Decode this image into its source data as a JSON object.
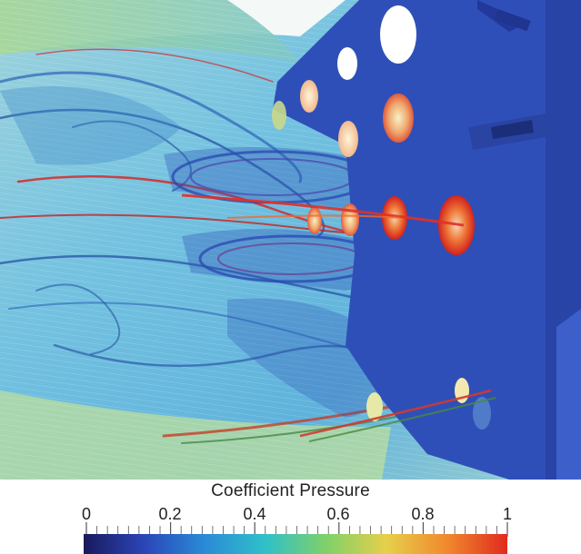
{
  "figure": {
    "legend_title": "Coefficient Pressure",
    "colorbar": {
      "min": 0,
      "max": 1,
      "tick_labels": [
        "0",
        "0.2",
        "0.4",
        "0.6",
        "0.8",
        "1"
      ],
      "tick_values": [
        0,
        0.2,
        0.4,
        0.6,
        0.8,
        1
      ],
      "minor_divisions": 40,
      "colormap": [
        "#1a1a5c",
        "#2b45b8",
        "#2a8bd6",
        "#2fc0c9",
        "#7fd06a",
        "#e6d04a",
        "#f0892e",
        "#e02a1e"
      ]
    },
    "colors": {
      "plate": "#2f4fb8",
      "plate_dark": "#22389a",
      "streamline_light": "#6ec6e8",
      "streamline_dark": "#1f4aa0",
      "streamline_red": "#d42a2a",
      "streamline_green": "#8dcf7a"
    },
    "icons": [
      "bluff-body-plate",
      "circular-hole",
      "rectangular-slot",
      "vortex-streamlines"
    ]
  }
}
